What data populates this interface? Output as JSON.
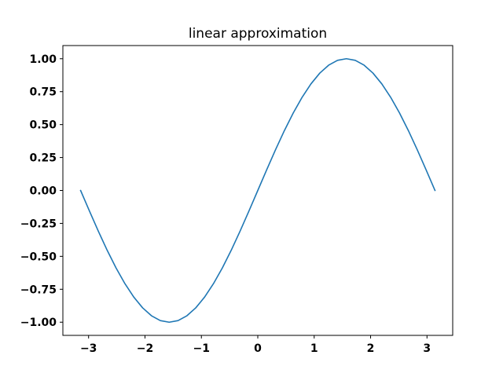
{
  "chart_data": {
    "type": "line",
    "title": "linear approximation",
    "xlabel": "",
    "ylabel": "",
    "xlim": [
      -3.4558,
      3.4558
    ],
    "ylim": [
      -1.1,
      1.1
    ],
    "grid": false,
    "x_ticks": [
      -3,
      -2,
      -1,
      0,
      1,
      2,
      3
    ],
    "x_tick_labels": [
      "−3",
      "−2",
      "−1",
      "0",
      "1",
      "2",
      "3"
    ],
    "y_ticks": [
      1.0,
      0.75,
      0.5,
      0.25,
      0.0,
      -0.25,
      -0.5,
      -0.75,
      -1.0
    ],
    "y_tick_labels": [
      "1.00",
      "0.75",
      "0.50",
      "0.25",
      "0.00",
      "−0.25",
      "−0.50",
      "−0.75",
      "−1.00"
    ],
    "series": [
      {
        "color": "#1f77b4",
        "x": [
          -3.1416,
          -2.9845,
          -2.8274,
          -2.6704,
          -2.5133,
          -2.3562,
          -2.1991,
          -2.042,
          -1.885,
          -1.7279,
          -1.5708,
          -1.4137,
          -1.2566,
          -1.0996,
          -0.9425,
          -0.7854,
          -0.6283,
          -0.4712,
          -0.3142,
          -0.1571,
          0.0,
          0.1571,
          0.3142,
          0.4712,
          0.6283,
          0.7854,
          0.9425,
          1.0996,
          1.2566,
          1.4137,
          1.5708,
          1.7279,
          1.885,
          2.042,
          2.1991,
          2.3562,
          2.5133,
          2.6704,
          2.8274,
          2.9845,
          3.1416
        ],
        "y": [
          0.0,
          -0.1564,
          -0.309,
          -0.454,
          -0.5878,
          -0.7071,
          -0.809,
          -0.891,
          -0.9511,
          -0.9877,
          -1.0,
          -0.9877,
          -0.9511,
          -0.891,
          -0.809,
          -0.7071,
          -0.5878,
          -0.454,
          -0.309,
          -0.1564,
          0.0,
          0.1564,
          0.309,
          0.454,
          0.5878,
          0.7071,
          0.809,
          0.891,
          0.9511,
          0.9877,
          1.0,
          0.9877,
          0.9511,
          0.891,
          0.809,
          0.7071,
          0.5878,
          0.454,
          0.309,
          0.1564,
          0.0
        ]
      }
    ]
  }
}
